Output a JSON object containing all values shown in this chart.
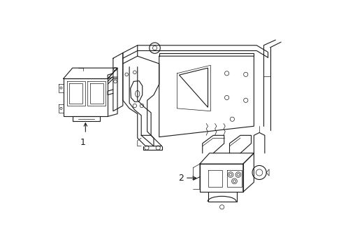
{
  "bg_color": "#ffffff",
  "line_color": "#1a1a1a",
  "lw": 0.8,
  "tlw": 0.5,
  "fig_width": 4.89,
  "fig_height": 3.6,
  "dpi": 100,
  "label1": "1",
  "label2": "2"
}
